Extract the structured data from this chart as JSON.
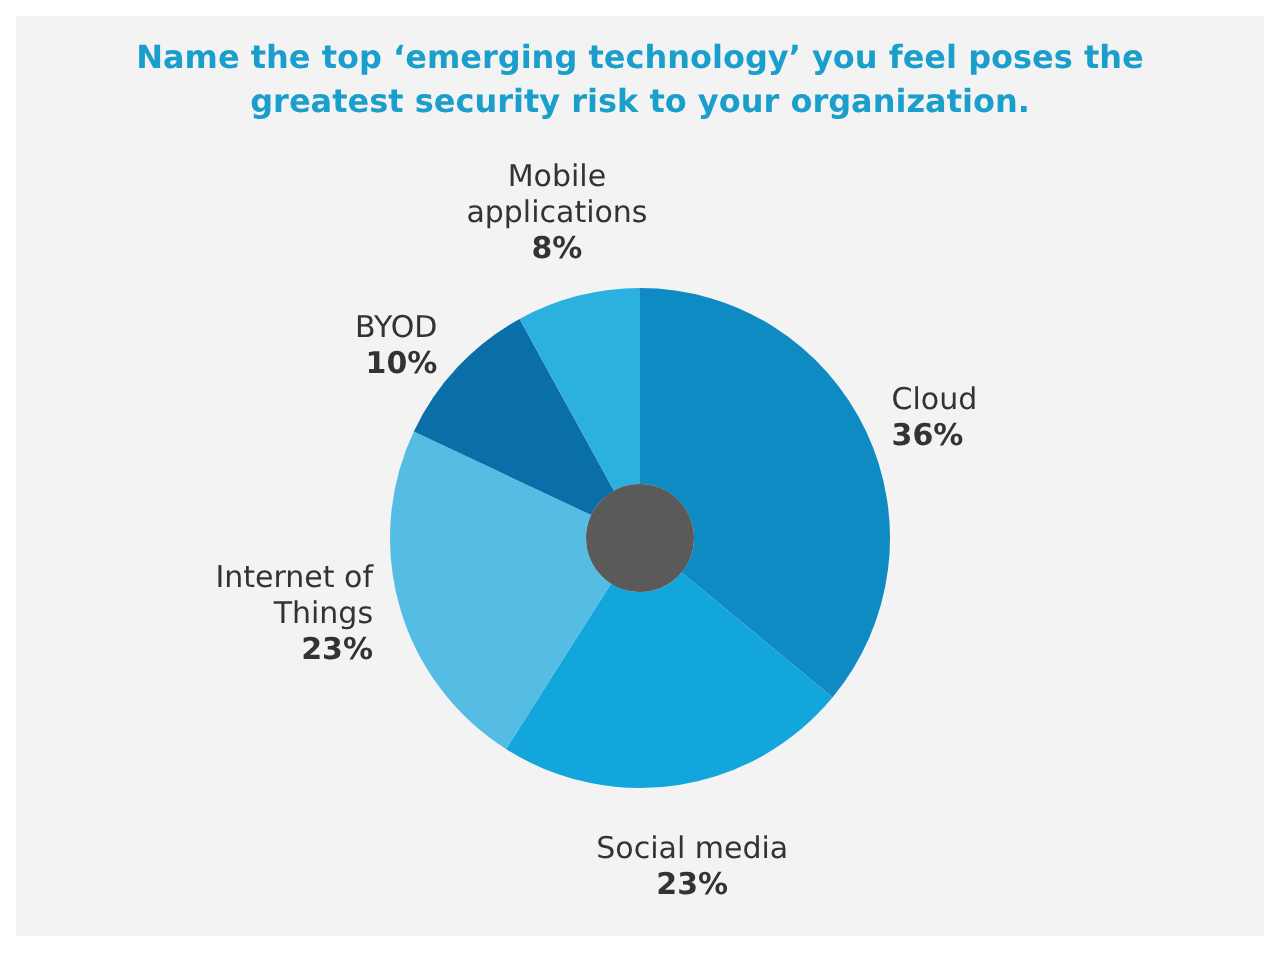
{
  "chart_data": {
    "type": "donut",
    "title": "Name the top ‘emerging technology’ you feel poses the greatest security risk to your organization.",
    "categories": [
      "Cloud",
      "Social media",
      "Internet of Things",
      "BYOD",
      "Mobile applications"
    ],
    "values": [
      36,
      23,
      23,
      10,
      8
    ],
    "value_labels": [
      "36%",
      "23%",
      "23%",
      "10%",
      "8%"
    ],
    "colors": [
      "#0e8bc2",
      "#12a6dc",
      "#55bde4",
      "#0a6fa8",
      "#2cb0e0"
    ],
    "legend": false
  }
}
